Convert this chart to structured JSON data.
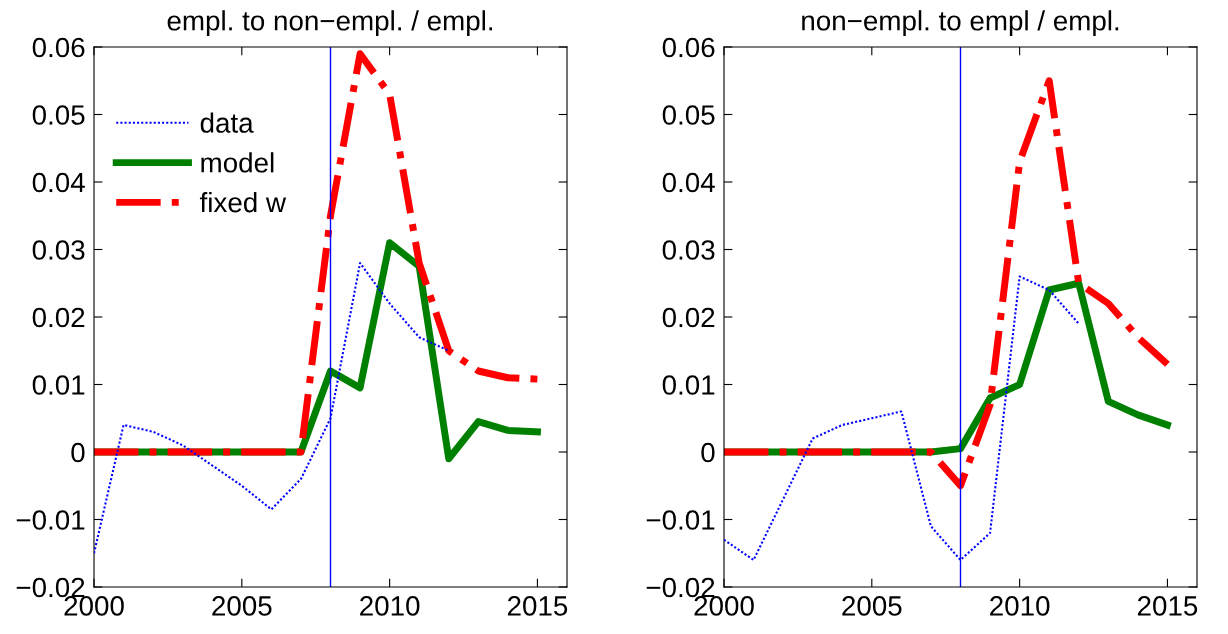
{
  "chart_data": [
    {
      "type": "line",
      "title": "empl. to non−empl. / empl.",
      "x": [
        2000,
        2001,
        2002,
        2003,
        2004,
        2005,
        2006,
        2007,
        2008,
        2009,
        2010,
        2011,
        2012,
        2013,
        2014,
        2015
      ],
      "xlim": [
        2000,
        2016
      ],
      "xticks": [
        2000,
        2005,
        2010,
        2015
      ],
      "ylim": [
        -0.02,
        0.06
      ],
      "yticks": [
        -0.02,
        -0.01,
        0,
        0.01,
        0.02,
        0.03,
        0.04,
        0.05,
        0.06
      ],
      "grid": false,
      "legend": "top left",
      "ref_lines": [
        {
          "axis": "x",
          "value": 2008,
          "color": "#0000ff"
        }
      ],
      "series": [
        {
          "name": "data",
          "color": "#0000ff",
          "line_style": "dotted",
          "x": [
            2000,
            2001,
            2002,
            2003,
            2004,
            2005,
            2006,
            2007,
            2008,
            2009,
            2010,
            2011,
            2012
          ],
          "values": [
            -0.015,
            0.004,
            0.003,
            0.001,
            -0.002,
            -0.005,
            -0.0085,
            -0.004,
            0.005,
            0.028,
            0.022,
            0.017,
            0.015
          ]
        },
        {
          "name": "model",
          "color": "#008000",
          "line_style": "solid",
          "values": [
            0,
            0,
            0,
            0,
            0,
            0,
            0,
            0,
            0.012,
            0.0095,
            0.031,
            0.0275,
            -0.001,
            0.0045,
            0.0032,
            0.003
          ]
        },
        {
          "name": "fixed w",
          "color": "#ff0000",
          "line_style": "dashdot",
          "values": [
            0,
            0,
            0,
            0,
            0,
            0,
            0,
            0,
            0.035,
            0.059,
            0.053,
            0.028,
            0.015,
            0.012,
            0.011,
            0.0108
          ]
        }
      ]
    },
    {
      "type": "line",
      "title": "non−empl. to empl / empl.",
      "x": [
        2000,
        2001,
        2002,
        2003,
        2004,
        2005,
        2006,
        2007,
        2008,
        2009,
        2010,
        2011,
        2012,
        2013,
        2014,
        2015
      ],
      "xlim": [
        2000,
        2016
      ],
      "xticks": [
        2000,
        2005,
        2010,
        2015
      ],
      "ylim": [
        -0.02,
        0.06
      ],
      "yticks": [
        -0.02,
        -0.01,
        0,
        0.01,
        0.02,
        0.03,
        0.04,
        0.05,
        0.06
      ],
      "grid": false,
      "ref_lines": [
        {
          "axis": "x",
          "value": 2008,
          "color": "#0000ff"
        }
      ],
      "series": [
        {
          "color": "#0000ff",
          "line_style": "dotted",
          "x": [
            2000,
            2001,
            2002,
            2003,
            2004,
            2005,
            2006,
            2007,
            2008,
            2009,
            2010,
            2011,
            2012
          ],
          "values": [
            -0.013,
            -0.016,
            -0.007,
            0.002,
            0.004,
            0.005,
            0.006,
            -0.011,
            -0.016,
            -0.012,
            0.026,
            0.024,
            0.019
          ]
        },
        {
          "color": "#008000",
          "line_style": "solid",
          "values": [
            0,
            0,
            0,
            0,
            0,
            0,
            0,
            0,
            0.0005,
            0.008,
            0.01,
            0.024,
            0.025,
            0.0075,
            0.0055,
            0.004
          ]
        },
        {
          "color": "#ff0000",
          "line_style": "dashdot",
          "values": [
            0,
            0,
            0,
            0,
            0,
            0,
            0,
            0,
            -0.005,
            0.007,
            0.043,
            0.055,
            0.025,
            0.022,
            0.017,
            0.013
          ]
        }
      ]
    }
  ]
}
